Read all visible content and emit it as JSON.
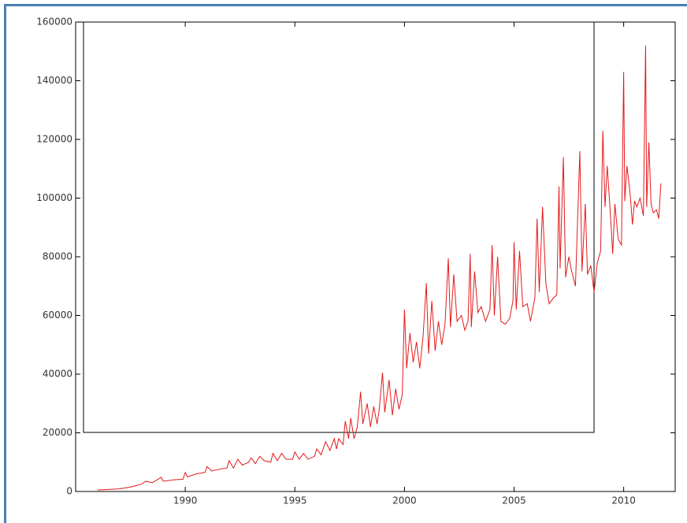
{
  "chart_data": {
    "type": "line",
    "x": [
      1986.0,
      1986.5,
      1987.0,
      1987.5,
      1988.0,
      1988.2,
      1988.5,
      1988.9,
      1989.0,
      1989.5,
      1989.9,
      1990.0,
      1990.1,
      1990.5,
      1990.9,
      1991.0,
      1991.2,
      1991.5,
      1991.9,
      1992.0,
      1992.2,
      1992.4,
      1992.6,
      1992.9,
      1993.0,
      1993.2,
      1993.4,
      1993.6,
      1993.9,
      1994.0,
      1994.2,
      1994.4,
      1994.6,
      1994.9,
      1995.0,
      1995.2,
      1995.4,
      1995.6,
      1995.9,
      1996.0,
      1996.2,
      1996.4,
      1996.6,
      1996.8,
      1996.9,
      1997.0,
      1997.2,
      1997.3,
      1997.45,
      1997.55,
      1997.7,
      1997.85,
      1998.0,
      1998.1,
      1998.3,
      1998.45,
      1998.6,
      1998.75,
      1998.85,
      1999.0,
      1999.1,
      1999.3,
      1999.45,
      1999.6,
      1999.75,
      1999.9,
      2000.0,
      2000.1,
      2000.25,
      2000.4,
      2000.55,
      2000.7,
      2000.85,
      2001.0,
      2001.1,
      2001.25,
      2001.4,
      2001.55,
      2001.7,
      2001.85,
      2002.0,
      2002.1,
      2002.25,
      2002.4,
      2002.6,
      2002.75,
      2002.9,
      2003.0,
      2003.05,
      2003.2,
      2003.35,
      2003.5,
      2003.7,
      2003.9,
      2004.0,
      2004.1,
      2004.25,
      2004.4,
      2004.6,
      2004.8,
      2004.95,
      2005.0,
      2005.1,
      2005.25,
      2005.4,
      2005.6,
      2005.75,
      2005.95,
      2006.05,
      2006.15,
      2006.3,
      2006.45,
      2006.6,
      2006.8,
      2006.95,
      2007.05,
      2007.1,
      2007.25,
      2007.35,
      2007.5,
      2007.6,
      2007.8,
      2008.0,
      2008.1,
      2008.25,
      2008.35,
      2008.5,
      2008.65,
      2008.8,
      2008.95,
      2009.05,
      2009.15,
      2009.25,
      2009.4,
      2009.5,
      2009.6,
      2009.75,
      2009.9,
      2010.0,
      2010.05,
      2010.15,
      2010.3,
      2010.4,
      2010.5,
      2010.6,
      2010.75,
      2010.9,
      2011.0,
      2011.05,
      2011.15,
      2011.25,
      2011.35,
      2011.5,
      2011.6,
      2011.7
    ],
    "values": [
      500,
      700,
      900,
      1500,
      2500,
      3500,
      3000,
      4800,
      3500,
      4000,
      4200,
      6500,
      5000,
      6000,
      6500,
      8500,
      7000,
      7500,
      8000,
      10500,
      8000,
      11000,
      9000,
      10000,
      11500,
      9500,
      12000,
      10500,
      10000,
      13000,
      10500,
      13000,
      11000,
      11000,
      13500,
      11000,
      13000,
      11000,
      12000,
      14500,
      12500,
      17000,
      14000,
      18000,
      14500,
      18000,
      16000,
      24000,
      18000,
      25000,
      18000,
      22000,
      34000,
      23000,
      30000,
      22000,
      29000,
      23000,
      28000,
      40500,
      27000,
      38000,
      26000,
      35000,
      28000,
      33000,
      62000,
      42000,
      54000,
      44000,
      51000,
      42000,
      53000,
      71000,
      47000,
      65000,
      48000,
      58000,
      50000,
      57000,
      79500,
      56000,
      74000,
      58000,
      60000,
      55000,
      58000,
      81000,
      56000,
      75000,
      61000,
      63000,
      58000,
      62000,
      84000,
      60000,
      80000,
      58000,
      57000,
      59000,
      65000,
      85000,
      62000,
      82000,
      63000,
      64000,
      58000,
      66000,
      93000,
      68000,
      97000,
      71000,
      64000,
      66000,
      67000,
      104000,
      76000,
      114000,
      73000,
      80000,
      76000,
      70000,
      116000,
      75000,
      98000,
      74000,
      77000,
      68000,
      78000,
      82000,
      123000,
      97000,
      111000,
      94000,
      81000,
      98000,
      86000,
      84000,
      143000,
      99000,
      111000,
      101000,
      91000,
      99000,
      97000,
      100000,
      94000,
      152000,
      97000,
      119000,
      98000,
      95000,
      96000,
      93000,
      105000
    ],
    "color": "#e41a1c",
    "xlim": [
      1985,
      2012.35
    ],
    "xticks": [
      1990,
      1995,
      2000,
      2005,
      2010
    ],
    "ylim": [
      0,
      160000
    ],
    "yticks": [
      0,
      20000,
      40000,
      60000,
      80000,
      100000,
      120000,
      140000,
      160000
    ]
  }
}
